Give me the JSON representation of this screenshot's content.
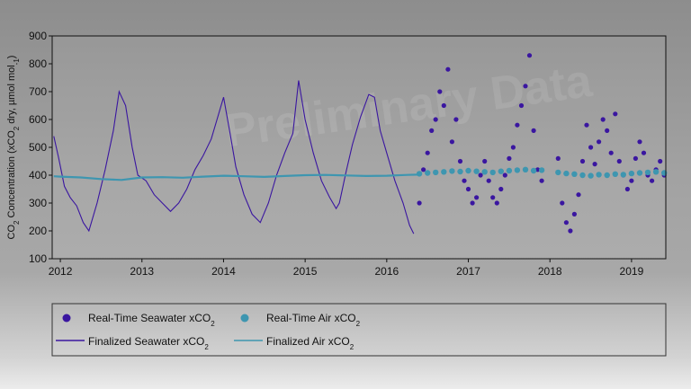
{
  "chart_data": {
    "type": "scatter",
    "ylabel_parts": [
      "CO",
      "2",
      " Concentration (xCO",
      "2",
      " dry, µmol mol",
      "-1",
      ")"
    ],
    "xlim": [
      2011.9,
      2019.42
    ],
    "ylim": [
      100,
      900
    ],
    "xticks": [
      2012,
      2013,
      2014,
      2015,
      2016,
      2017,
      2018,
      2019
    ],
    "yticks": [
      100,
      200,
      300,
      400,
      500,
      600,
      700,
      800,
      900
    ],
    "grid": false,
    "legend_position": "bottom",
    "watermark": "Preliminary Data",
    "series": [
      {
        "name_parts": [
          "Real-Time Seawater xCO",
          "2"
        ],
        "style": "dots",
        "color": "#3a16a0",
        "x": [
          2016.4,
          2016.45,
          2016.5,
          2016.55,
          2016.6,
          2016.65,
          2016.7,
          2016.75,
          2016.8,
          2016.85,
          2016.9,
          2016.95,
          2017.0,
          2017.05,
          2017.1,
          2017.15,
          2017.2,
          2017.25,
          2017.3,
          2017.35,
          2017.4,
          2017.45,
          2017.5,
          2017.55,
          2017.6,
          2017.65,
          2017.7,
          2017.75,
          2017.8,
          2017.85,
          2017.9,
          2018.1,
          2018.15,
          2018.2,
          2018.25,
          2018.3,
          2018.35,
          2018.4,
          2018.45,
          2018.5,
          2018.55,
          2018.6,
          2018.65,
          2018.7,
          2018.75,
          2018.8,
          2018.85,
          2018.9,
          2018.95,
          2019.0,
          2019.05,
          2019.1,
          2019.15,
          2019.2,
          2019.25,
          2019.3,
          2019.35,
          2019.4
        ],
        "y": [
          300,
          420,
          480,
          560,
          600,
          700,
          650,
          780,
          520,
          600,
          450,
          380,
          350,
          300,
          320,
          400,
          450,
          380,
          320,
          300,
          350,
          400,
          460,
          500,
          580,
          650,
          720,
          830,
          560,
          420,
          380,
          460,
          300,
          230,
          200,
          260,
          330,
          450,
          580,
          500,
          440,
          520,
          600,
          560,
          480,
          620,
          450,
          400,
          350,
          380,
          460,
          520,
          480,
          400,
          380,
          420,
          450,
          400
        ]
      },
      {
        "name_parts": [
          "Real-Time Air xCO",
          "2"
        ],
        "style": "dots",
        "color": "#3e96b0",
        "x": [
          2016.4,
          2016.5,
          2016.6,
          2016.7,
          2016.8,
          2016.9,
          2017.0,
          2017.1,
          2017.2,
          2017.3,
          2017.4,
          2017.5,
          2017.6,
          2017.7,
          2017.8,
          2017.9,
          2018.1,
          2018.2,
          2018.3,
          2018.4,
          2018.5,
          2018.6,
          2018.7,
          2018.8,
          2018.9,
          2019.0,
          2019.1,
          2019.2,
          2019.3,
          2019.4
        ],
        "y": [
          405,
          408,
          410,
          412,
          415,
          413,
          416,
          414,
          412,
          410,
          414,
          416,
          418,
          420,
          416,
          418,
          410,
          406,
          404,
          400,
          398,
          402,
          400,
          404,
          402,
          406,
          408,
          410,
          412,
          408
        ]
      },
      {
        "name_parts": [
          "Finalized Seawater xCO",
          "2"
        ],
        "style": "line",
        "color": "#3a16a0",
        "x": [
          2011.92,
          2011.98,
          2012.05,
          2012.12,
          2012.2,
          2012.28,
          2012.35,
          2012.45,
          2012.55,
          2012.65,
          2012.72,
          2012.8,
          2012.88,
          2012.95,
          2013.05,
          2013.15,
          2013.25,
          2013.35,
          2013.45,
          2013.55,
          2013.65,
          2013.75,
          2013.85,
          2013.92,
          2014.0,
          2014.08,
          2014.15,
          2014.25,
          2014.35,
          2014.45,
          2014.55,
          2014.65,
          2014.75,
          2014.85,
          2014.92,
          2015.0,
          2015.1,
          2015.2,
          2015.3,
          2015.38,
          2015.42,
          2015.5,
          2015.58,
          2015.68,
          2015.78,
          2015.85,
          2015.92,
          2016.0,
          2016.1,
          2016.2,
          2016.28,
          2016.33
        ],
        "y": [
          540,
          460,
          360,
          320,
          290,
          230,
          200,
          300,
          420,
          560,
          700,
          650,
          500,
          400,
          380,
          330,
          300,
          270,
          300,
          350,
          420,
          470,
          530,
          600,
          680,
          550,
          430,
          330,
          260,
          230,
          300,
          400,
          480,
          550,
          740,
          600,
          480,
          380,
          320,
          280,
          300,
          410,
          510,
          610,
          690,
          680,
          560,
          480,
          380,
          300,
          220,
          190
        ]
      },
      {
        "name_parts": [
          "Finalized Air xCO",
          "2"
        ],
        "style": "line",
        "color": "#3e96b0",
        "x": [
          2011.92,
          2012.0,
          2012.25,
          2012.5,
          2012.75,
          2013.0,
          2013.25,
          2013.5,
          2013.75,
          2014.0,
          2014.25,
          2014.5,
          2014.75,
          2015.0,
          2015.25,
          2015.5,
          2015.75,
          2016.0,
          2016.25,
          2016.38
        ],
        "y": [
          396,
          395,
          392,
          386,
          383,
          392,
          393,
          391,
          395,
          398,
          396,
          394,
          397,
          400,
          401,
          399,
          397,
          398,
          401,
          402
        ]
      }
    ]
  }
}
